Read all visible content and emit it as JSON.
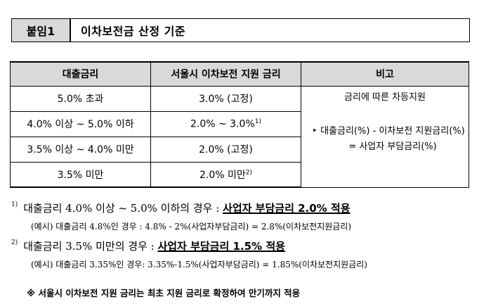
{
  "header": {
    "tag": "붙임1",
    "title": "이차보전금 산정 기준"
  },
  "table": {
    "headers": [
      "대출금리",
      "서울시 이차보전 지원 금리",
      "비고"
    ],
    "rows": [
      {
        "loan_rate": "5.0% 초과",
        "support_rate": "3.0% (고정)",
        "mark": ""
      },
      {
        "loan_rate": "4.0% 이상 ~ 5.0% 이하",
        "support_rate": "2.0% ~ 3.0%",
        "mark": "1)"
      },
      {
        "loan_rate": "3.5% 이상 ~ 4.0% 미만",
        "support_rate": "2.0% (고정)",
        "mark": ""
      },
      {
        "loan_rate": "3.5% 미만",
        "support_rate": "2.0% 미만",
        "mark": "2)"
      }
    ],
    "remarks": {
      "title": "금리에 따른 차등지원",
      "bullet": "‣",
      "formula_line1": "대출금리(%) - 이차보전 지원금리(%)",
      "formula_line2": "= 사업자 부담금리(%)"
    }
  },
  "notes": [
    {
      "mark": "1)",
      "text": "대출금리 4.0% 이상 ~ 5.0% 이하의 경우 : ",
      "emphasis": "사업자 부담금리 2.0% 적용",
      "example": "(예시) 대출금리 4.8%인 경우 : 4.8% - 2%(사업자부담금리) = 2.8%(이차보전지원금리)"
    },
    {
      "mark": "2)",
      "text": "대출금리 3.5% 미만의 경우 : ",
      "emphasis": "사업자 부담금리 1.5% 적용",
      "example": "(예시) 대출금리 3.35%인 경우: 3.35%-1.5%(사업자부담금리) = 1.85%(이차보전지원금리)"
    }
  ],
  "footer": "※ 서울시 이차보전 지원 금리는 최초 지원 금리로 확정하여 만기까지 적용"
}
